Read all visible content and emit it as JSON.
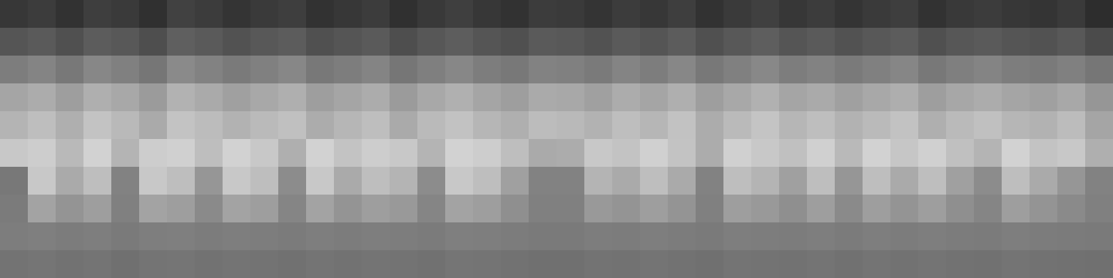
{
  "chart_data": {
    "type": "heatmap",
    "tick_labels": false,
    "color_range": [
      0,
      255
    ],
    "cells": [
      [
        55,
        60,
        50,
        62,
        58,
        48,
        65,
        60,
        52,
        58,
        62,
        50,
        55,
        60,
        48,
        57,
        63,
        55,
        50,
        60,
        58,
        52,
        60,
        55,
        62,
        50,
        58,
        64,
        55,
        60,
        52,
        58,
        62,
        50,
        57,
        60,
        55,
        52,
        58,
        45
      ],
      [
        85,
        90,
        80,
        92,
        88,
        78,
        95,
        90,
        82,
        88,
        92,
        80,
        85,
        90,
        78,
        87,
        93,
        85,
        80,
        90,
        88,
        82,
        90,
        85,
        92,
        80,
        88,
        94,
        85,
        90,
        82,
        88,
        92,
        80,
        87,
        90,
        85,
        82,
        88,
        75
      ],
      [
        125,
        132,
        120,
        135,
        128,
        118,
        138,
        130,
        122,
        128,
        135,
        120,
        125,
        132,
        118,
        127,
        135,
        125,
        120,
        130,
        128,
        122,
        132,
        125,
        135,
        120,
        128,
        136,
        125,
        130,
        122,
        128,
        134,
        120,
        127,
        132,
        125,
        122,
        128,
        118
      ],
      [
        165,
        172,
        158,
        175,
        168,
        155,
        178,
        170,
        160,
        168,
        175,
        158,
        165,
        172,
        155,
        168,
        176,
        165,
        158,
        170,
        168,
        160,
        172,
        165,
        175,
        158,
        168,
        177,
        165,
        170,
        160,
        168,
        174,
        158,
        167,
        172,
        165,
        160,
        168,
        150
      ],
      [
        180,
        190,
        175,
        195,
        185,
        170,
        195,
        188,
        178,
        186,
        192,
        172,
        182,
        190,
        170,
        186,
        194,
        182,
        175,
        188,
        185,
        178,
        190,
        182,
        194,
        172,
        186,
        196,
        182,
        190,
        178,
        186,
        194,
        175,
        186,
        192,
        182,
        178,
        188,
        165
      ],
      [
        200,
        205,
        185,
        210,
        180,
        205,
        208,
        190,
        210,
        200,
        175,
        210,
        195,
        205,
        200,
        180,
        210,
        205,
        190,
        170,
        172,
        200,
        195,
        208,
        195,
        172,
        208,
        200,
        192,
        208,
        185,
        210,
        198,
        208,
        192,
        180,
        210,
        195,
        200,
        175
      ],
      [
        120,
        200,
        170,
        190,
        130,
        200,
        190,
        150,
        200,
        190,
        140,
        200,
        170,
        190,
        180,
        140,
        200,
        190,
        160,
        130,
        130,
        180,
        170,
        190,
        170,
        130,
        190,
        180,
        160,
        190,
        150,
        190,
        170,
        190,
        160,
        140,
        190,
        170,
        150,
        130
      ],
      [
        123,
        163,
        148,
        158,
        128,
        163,
        158,
        138,
        163,
        158,
        133,
        163,
        148,
        158,
        153,
        133,
        163,
        158,
        143,
        128,
        128,
        153,
        148,
        158,
        148,
        128,
        158,
        153,
        143,
        158,
        138,
        158,
        148,
        158,
        143,
        133,
        158,
        148,
        138,
        128
      ],
      [
        125,
        127,
        124,
        126,
        122,
        126,
        127,
        124,
        126,
        125,
        123,
        126,
        124,
        126,
        125,
        123,
        127,
        126,
        124,
        122,
        122,
        125,
        124,
        126,
        124,
        122,
        126,
        125,
        124,
        126,
        123,
        126,
        124,
        126,
        124,
        123,
        126,
        124,
        123,
        122
      ],
      [
        115,
        117,
        114,
        116,
        112,
        116,
        117,
        114,
        116,
        115,
        113,
        116,
        114,
        116,
        115,
        113,
        117,
        116,
        114,
        112,
        112,
        115,
        114,
        116,
        114,
        112,
        116,
        115,
        114,
        116,
        113,
        116,
        114,
        116,
        114,
        113,
        116,
        114,
        113,
        112
      ]
    ]
  }
}
